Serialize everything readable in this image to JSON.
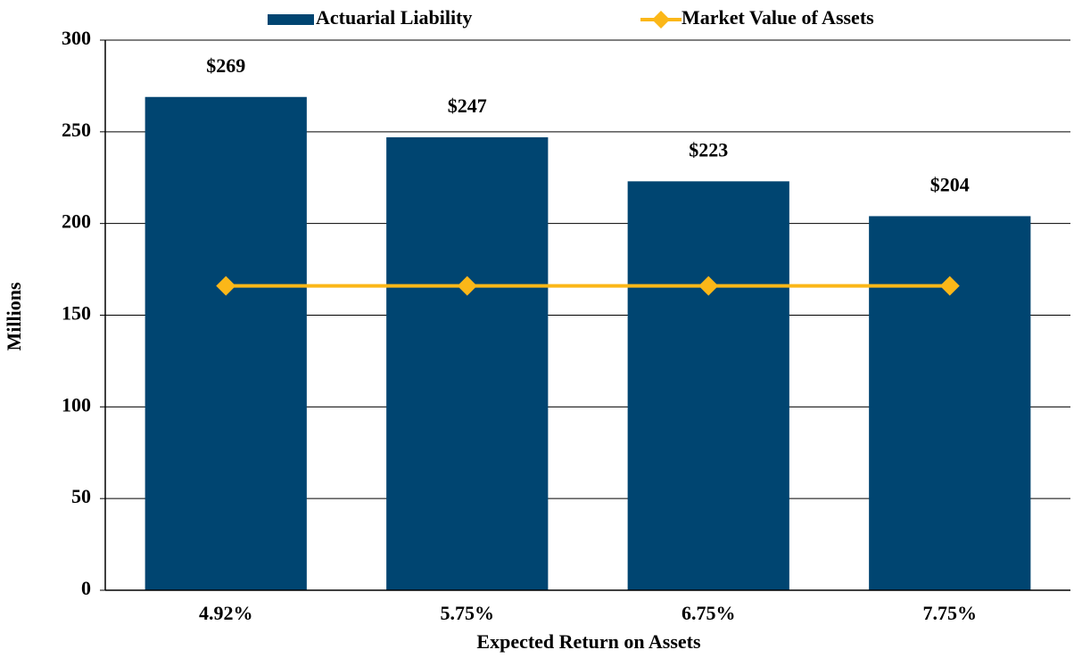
{
  "chart_data": {
    "type": "bar",
    "x_label": "Expected Return on Assets",
    "y_label": "Millions",
    "categories": [
      "4.92%",
      "5.75%",
      "6.75%",
      "7.75%"
    ],
    "series": [
      {
        "name": "Actuarial Liability",
        "color": "#004571",
        "values": [
          269,
          247,
          223,
          204
        ],
        "value_labels": [
          "$269",
          "$247",
          "$223",
          "$204"
        ]
      },
      {
        "name": "Market Value of Assets",
        "color": "#fbb718",
        "type": "line",
        "values": [
          166,
          166,
          166,
          166
        ]
      }
    ],
    "ylim": [
      0,
      300
    ],
    "yticks": [
      0,
      50,
      100,
      150,
      200,
      250,
      300
    ],
    "grid": true,
    "legend": "top"
  }
}
